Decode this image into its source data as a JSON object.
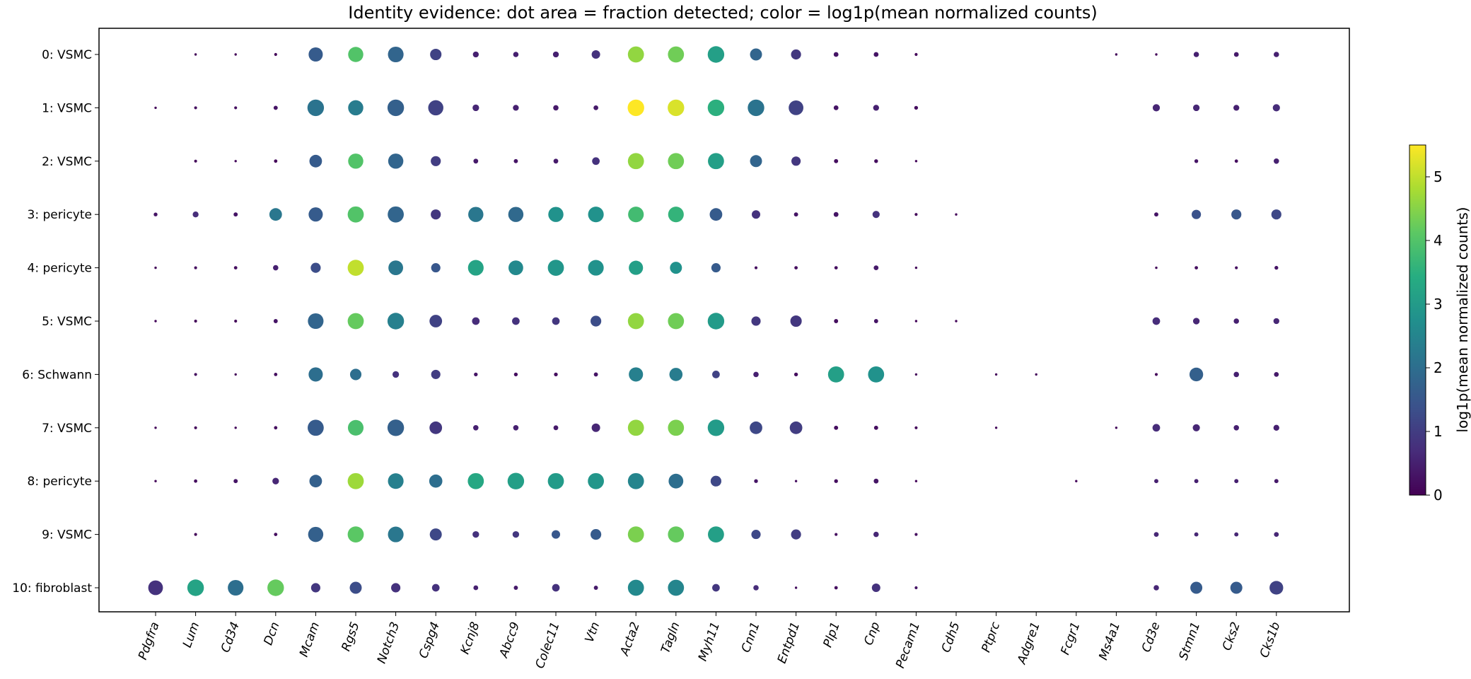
{
  "chart_data": {
    "type": "dotplot",
    "title": "Identity evidence: dot area = fraction detected; color = log1p(mean normalized counts)",
    "genes": [
      "Pdgfra",
      "Lum",
      "Cd34",
      "Dcn",
      "Mcam",
      "Rgs5",
      "Notch3",
      "Cspg4",
      "Kcnj8",
      "Abcc9",
      "Colec11",
      "Vtn",
      "Acta2",
      "Tagln",
      "Myh11",
      "Cnn1",
      "Entpd1",
      "Plp1",
      "Cnp",
      "Pecam1",
      "Cdh5",
      "Ptprc",
      "Adgre1",
      "Fcgr1",
      "Ms4a1",
      "Cd3e",
      "Stmn1",
      "Cks2",
      "Cks1b"
    ],
    "clusters": [
      "0: VSMC",
      "1: VSMC",
      "2: VSMC",
      "3: pericyte",
      "4: pericyte",
      "5: VSMC",
      "6: Schwann",
      "7: VSMC",
      "8: pericyte",
      "9: VSMC",
      "10: fibroblast"
    ],
    "colorbar": {
      "label": "log1p(mean normalized counts)",
      "range": [
        0,
        5.5
      ],
      "ticks": [
        0,
        1,
        2,
        3,
        4,
        5
      ],
      "colormap": "viridis"
    },
    "fraction": [
      [
        0,
        0.02,
        0.02,
        0.03,
        0.7,
        0.8,
        0.85,
        0.45,
        0.12,
        0.1,
        0.12,
        0.25,
        0.9,
        0.9,
        0.95,
        0.5,
        0.35,
        0.08,
        0.08,
        0.03,
        0,
        0,
        0,
        0,
        0.02,
        0.02,
        0.1,
        0.08,
        0.1
      ],
      [
        0.02,
        0.03,
        0.03,
        0.06,
        0.95,
        0.8,
        0.95,
        0.8,
        0.15,
        0.12,
        0.1,
        0.08,
        0.95,
        0.95,
        0.95,
        0.95,
        0.75,
        0.08,
        0.12,
        0.05,
        0,
        0,
        0,
        0,
        0,
        0.18,
        0.15,
        0.12,
        0.18
      ],
      [
        0,
        0.03,
        0.02,
        0.04,
        0.55,
        0.8,
        0.8,
        0.35,
        0.08,
        0.06,
        0.08,
        0.2,
        0.9,
        0.9,
        0.9,
        0.5,
        0.3,
        0.06,
        0.05,
        0.02,
        0,
        0,
        0,
        0,
        0,
        0,
        0.05,
        0.04,
        0.1
      ],
      [
        0.05,
        0.12,
        0.06,
        0.55,
        0.7,
        0.9,
        0.9,
        0.35,
        0.8,
        0.8,
        0.8,
        0.85,
        0.85,
        0.85,
        0.55,
        0.25,
        0.06,
        0.08,
        0.18,
        0.03,
        0.02,
        0,
        0,
        0,
        0,
        0.06,
        0.3,
        0.35,
        0.35
      ],
      [
        0.02,
        0.03,
        0.04,
        0.1,
        0.35,
        0.9,
        0.75,
        0.3,
        0.85,
        0.75,
        0.9,
        0.85,
        0.7,
        0.5,
        0.3,
        0.03,
        0.04,
        0.04,
        0.08,
        0.02,
        0,
        0,
        0,
        0,
        0,
        0.02,
        0.04,
        0.03,
        0.05
      ],
      [
        0.02,
        0.03,
        0.03,
        0.06,
        0.85,
        0.9,
        0.95,
        0.55,
        0.2,
        0.2,
        0.2,
        0.4,
        0.9,
        0.9,
        0.95,
        0.3,
        0.45,
        0.06,
        0.06,
        0.02,
        0.02,
        0,
        0,
        0,
        0,
        0.2,
        0.15,
        0.1,
        0.12
      ],
      [
        0,
        0.03,
        0.02,
        0.04,
        0.7,
        0.45,
        0.15,
        0.3,
        0.05,
        0.05,
        0.05,
        0.06,
        0.7,
        0.6,
        0.2,
        0.1,
        0.05,
        0.9,
        0.9,
        0.02,
        0,
        0.02,
        0.02,
        0,
        0,
        0.03,
        0.65,
        0.1,
        0.08
      ],
      [
        0.02,
        0.03,
        0.02,
        0.04,
        0.9,
        0.85,
        0.95,
        0.55,
        0.1,
        0.1,
        0.08,
        0.25,
        0.9,
        0.9,
        0.95,
        0.55,
        0.55,
        0.06,
        0.06,
        0.03,
        0,
        0.02,
        0,
        0,
        0.02,
        0.2,
        0.18,
        0.1,
        0.12
      ],
      [
        0.02,
        0.04,
        0.06,
        0.15,
        0.55,
        0.9,
        0.85,
        0.6,
        0.9,
        0.95,
        0.9,
        0.9,
        0.9,
        0.75,
        0.4,
        0.05,
        0.02,
        0.05,
        0.08,
        0.02,
        0,
        0,
        0,
        0.02,
        0,
        0.06,
        0.06,
        0.06,
        0.06
      ],
      [
        0,
        0.03,
        0,
        0.04,
        0.8,
        0.9,
        0.85,
        0.5,
        0.15,
        0.15,
        0.25,
        0.4,
        0.9,
        0.9,
        0.9,
        0.3,
        0.35,
        0.03,
        0.1,
        0.03,
        0,
        0,
        0,
        0,
        0,
        0.08,
        0.06,
        0.06,
        0.08
      ],
      [
        0.75,
        0.95,
        0.85,
        0.95,
        0.3,
        0.5,
        0.3,
        0.2,
        0.08,
        0.06,
        0.2,
        0.06,
        0.9,
        0.9,
        0.2,
        0.1,
        0.02,
        0.04,
        0.25,
        0.03,
        0,
        0,
        0,
        0,
        0,
        0.1,
        0.5,
        0.5,
        0.65
      ]
    ],
    "expression": [
      [
        0,
        0.1,
        0.1,
        0.1,
        1.6,
        4.0,
        1.8,
        1.1,
        0.5,
        0.5,
        0.5,
        0.8,
        4.6,
        4.3,
        3.1,
        1.8,
        0.9,
        0.3,
        0.3,
        0.1,
        0,
        0,
        0,
        0,
        0.1,
        0.1,
        0.5,
        0.4,
        0.5
      ],
      [
        0.1,
        0.2,
        0.2,
        0.3,
        2.1,
        2.3,
        1.7,
        1.1,
        0.6,
        0.5,
        0.4,
        0.4,
        5.5,
        5.2,
        3.5,
        2.1,
        1.1,
        0.3,
        0.5,
        0.2,
        0,
        0,
        0,
        0,
        0,
        0.6,
        0.6,
        0.5,
        0.7
      ],
      [
        0,
        0.1,
        0.1,
        0.1,
        1.6,
        4.0,
        1.8,
        1.0,
        0.4,
        0.3,
        0.4,
        0.8,
        4.6,
        4.3,
        3.1,
        1.8,
        0.9,
        0.2,
        0.2,
        0.1,
        0,
        0,
        0,
        0,
        0,
        0,
        0.3,
        0.2,
        0.5
      ],
      [
        0.3,
        0.7,
        0.3,
        2.2,
        1.6,
        4.0,
        1.8,
        0.9,
        2.2,
        1.9,
        2.8,
        2.8,
        3.8,
        3.6,
        1.6,
        0.8,
        0.3,
        0.3,
        0.8,
        0.1,
        0.1,
        0,
        0,
        0,
        0,
        0.3,
        1.4,
        1.5,
        1.2
      ],
      [
        0.1,
        0.2,
        0.2,
        0.5,
        1.3,
        5.0,
        2.2,
        1.5,
        3.2,
        2.6,
        2.9,
        2.8,
        3.1,
        2.8,
        1.6,
        0.2,
        0.2,
        0.2,
        0.4,
        0.1,
        0,
        0,
        0,
        0,
        0,
        0.1,
        0.2,
        0.2,
        0.3
      ],
      [
        0.1,
        0.1,
        0.1,
        0.3,
        1.8,
        4.2,
        2.4,
        1.1,
        0.7,
        0.8,
        0.9,
        1.3,
        4.6,
        4.3,
        3.0,
        0.9,
        0.9,
        0.2,
        0.3,
        0.1,
        0.1,
        0,
        0,
        0,
        0,
        0.7,
        0.6,
        0.5,
        0.6
      ],
      [
        0,
        0.2,
        0.1,
        0.2,
        2.0,
        2.0,
        0.8,
        1.0,
        0.3,
        0.2,
        0.2,
        0.3,
        2.4,
        2.3,
        1.1,
        0.5,
        0.2,
        3.1,
        2.8,
        0.1,
        0,
        0.1,
        0.1,
        0,
        0,
        0.1,
        1.7,
        0.5,
        0.4
      ],
      [
        0.1,
        0.1,
        0.1,
        0.2,
        1.6,
        3.9,
        1.7,
        0.9,
        0.5,
        0.5,
        0.4,
        0.6,
        4.6,
        4.4,
        3.0,
        1.2,
        1.0,
        0.2,
        0.2,
        0.1,
        0,
        0.1,
        0,
        0,
        0.1,
        0.7,
        0.6,
        0.5,
        0.5
      ],
      [
        0.1,
        0.2,
        0.3,
        0.6,
        1.7,
        4.7,
        2.4,
        2.0,
        3.3,
        3.1,
        3.0,
        2.9,
        2.5,
        2.0,
        1.2,
        0.3,
        0.2,
        0.2,
        0.3,
        0.1,
        0,
        0,
        0,
        0.1,
        0,
        0.5,
        0.5,
        0.5,
        0.4
      ],
      [
        0,
        0.1,
        0,
        0.2,
        1.7,
        4.1,
        2.2,
        1.2,
        0.8,
        0.9,
        1.5,
        1.6,
        4.4,
        4.2,
        3.1,
        1.2,
        1.0,
        0.2,
        0.6,
        0.2,
        0,
        0,
        0,
        0,
        0,
        0.6,
        0.6,
        0.6,
        0.6
      ],
      [
        0.8,
        3.2,
        2.0,
        4.2,
        0.9,
        1.3,
        0.8,
        0.8,
        0.5,
        0.4,
        0.8,
        0.4,
        2.6,
        2.5,
        0.9,
        0.7,
        0.2,
        0.2,
        0.8,
        0.3,
        0,
        0,
        0,
        0,
        0,
        0.6,
        1.6,
        1.6,
        1.1
      ]
    ]
  }
}
